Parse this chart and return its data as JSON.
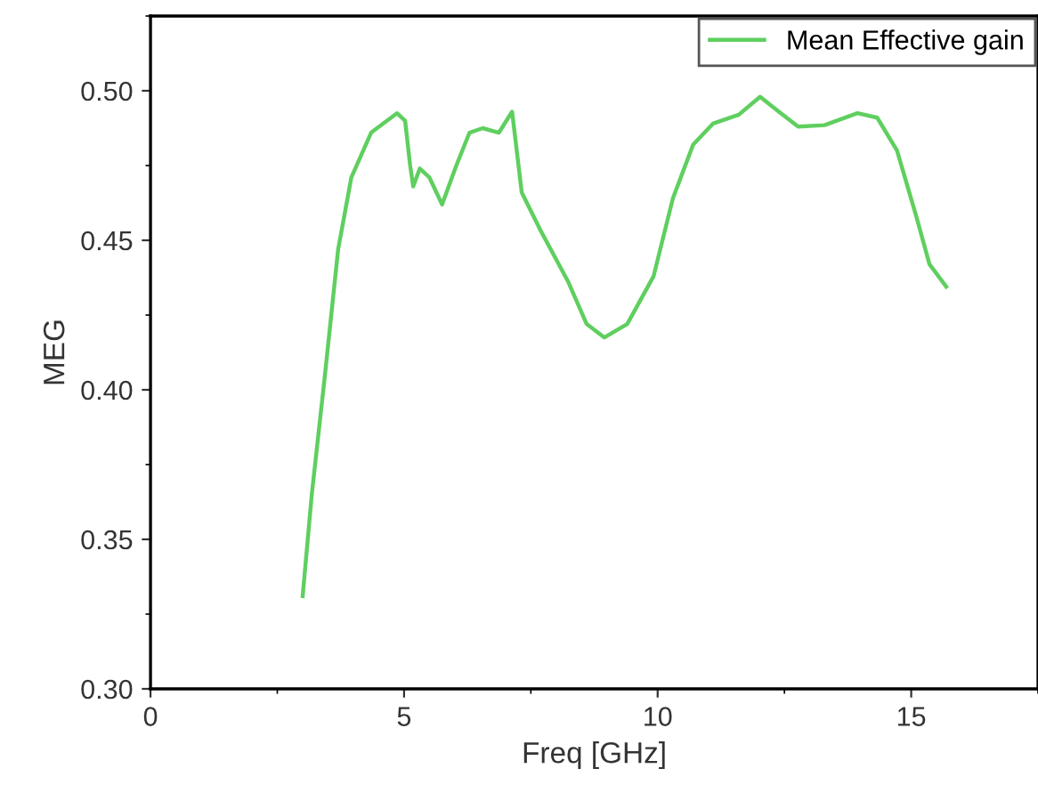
{
  "chart_data": {
    "type": "line",
    "xlabel": "Freq [GHz]",
    "ylabel": "MEG",
    "xlim": [
      0,
      17.5
    ],
    "xticks": [
      0,
      5,
      10,
      15
    ],
    "ylim": [
      0.3,
      0.525
    ],
    "yticks": [
      {
        "value": 0.3,
        "label": "0.30"
      },
      {
        "value": 0.35,
        "label": "0.35"
      },
      {
        "value": 0.4,
        "label": "0.40"
      },
      {
        "value": 0.45,
        "label": "0.45"
      },
      {
        "value": 0.5,
        "label": "0.50"
      }
    ],
    "legend": "top right",
    "grid": false,
    "marker": "none",
    "line_style": "solid",
    "series": [
      {
        "name": "Mean Effective gain",
        "color": "#5fcf5f",
        "x": [
          3.0,
          3.18,
          3.44,
          3.7,
          3.96,
          4.35,
          4.86,
          5.02,
          5.12,
          5.18,
          5.31,
          5.5,
          5.75,
          6.03,
          6.29,
          6.55,
          6.87,
          7.13,
          7.32,
          7.7,
          8.24,
          8.6,
          8.95,
          9.4,
          9.92,
          10.3,
          10.7,
          11.09,
          11.6,
          12.02,
          12.39,
          12.77,
          13.29,
          13.94,
          14.33,
          14.72,
          15.1,
          15.36,
          15.69
        ],
        "values": [
          0.331,
          0.365,
          0.405,
          0.447,
          0.471,
          0.486,
          0.4925,
          0.49,
          0.475,
          0.468,
          0.474,
          0.471,
          0.462,
          0.475,
          0.486,
          0.4875,
          0.486,
          0.493,
          0.466,
          0.453,
          0.436,
          0.422,
          0.4175,
          0.422,
          0.438,
          0.464,
          0.482,
          0.489,
          0.492,
          0.498,
          0.493,
          0.488,
          0.4885,
          0.4925,
          0.491,
          0.48,
          0.458,
          0.442,
          0.4345
        ]
      }
    ]
  }
}
